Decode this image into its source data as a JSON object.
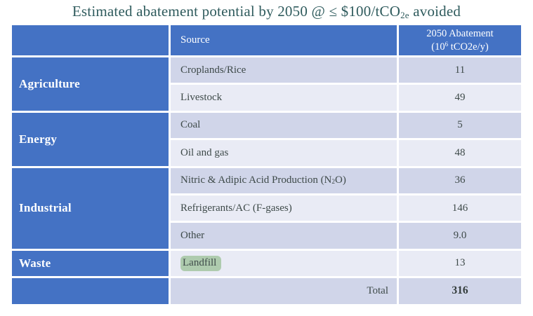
{
  "title": {
    "part1": "Estimated abatement potential by 2050 @ ≤ $100/tCO",
    "sub": "2e",
    "part2": " avoided"
  },
  "accent_colors": {
    "header_blue": "#4472c4",
    "band_dark": "#d0d5e9",
    "band_light": "#e9ebf5",
    "title_text": "#2f5b5d",
    "highlight_green": "#aecbae"
  },
  "table": {
    "header": {
      "source": "Source",
      "abatement_line1": "2050 Abatement",
      "unit_pre": "(10",
      "unit_sup": "6",
      "unit_post": " tCO2e/y)"
    },
    "categories": {
      "agriculture": "Agriculture",
      "energy": "Energy",
      "industrial": "Industrial",
      "waste": "Waste"
    },
    "rows": {
      "croplands": {
        "source": "Croplands/Rice",
        "value": "11"
      },
      "livestock": {
        "source": "Livestock",
        "value": "49"
      },
      "coal": {
        "source": "Coal",
        "value": "5"
      },
      "oilgas": {
        "source": "Oil and gas",
        "value": "48"
      },
      "nitric": {
        "source_pre": "Nitric & Adipic Acid Production (N",
        "source_sub": "2",
        "source_post": "O)",
        "value": "36"
      },
      "refrigerants": {
        "source": "Refrigerants/AC (F-gases)",
        "value": "146"
      },
      "other": {
        "source": "Other",
        "value": "9.0"
      },
      "landfill": {
        "source": "Landfill",
        "value": "13",
        "highlighted": true
      }
    },
    "total": {
      "label": "Total",
      "value": "316"
    }
  }
}
